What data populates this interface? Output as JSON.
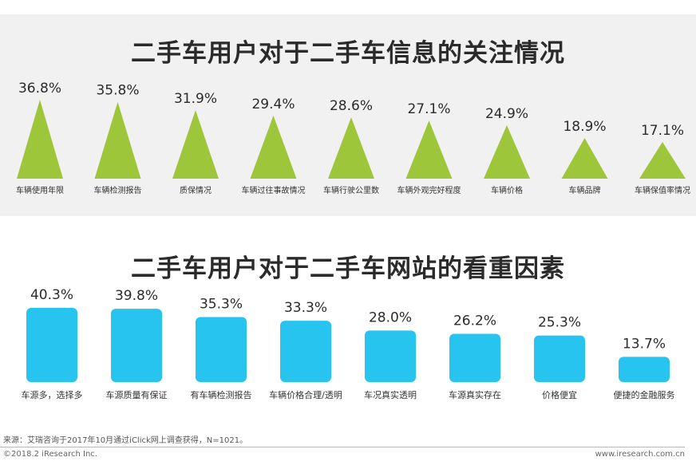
{
  "chart_data": [
    {
      "type": "bar",
      "shape": "triangle",
      "title": "二手车用户对于二手车信息的关注情况",
      "categories": [
        "车辆使用年限",
        "车辆检测报告",
        "质保情况",
        "车辆过往事故情况",
        "车辆行驶公里数",
        "车辆外观完好程度",
        "车辆价格",
        "车辆品牌",
        "车辆保值率情况"
      ],
      "values": [
        36.8,
        35.8,
        31.9,
        29.4,
        28.6,
        27.1,
        24.9,
        18.9,
        17.1
      ],
      "labels": [
        "36.8%",
        "35.8%",
        "31.9%",
        "29.4%",
        "28.6%",
        "27.1%",
        "24.9%",
        "18.9%",
        "17.1%"
      ],
      "unit": "%",
      "color": "#9dc63a",
      "xlabel": "",
      "ylabel": "",
      "ylim": [
        0,
        40
      ]
    },
    {
      "type": "bar",
      "title": "二手车用户对于二手车网站的看重因素",
      "categories": [
        "车源多，选择多",
        "车源质量有保证",
        "有车辆检测报告",
        "车辆价格合理/透明",
        "车况真实透明",
        "车源真实存在",
        "价格便宜",
        "便捷的金融服务"
      ],
      "values": [
        40.3,
        39.8,
        35.3,
        33.3,
        28.0,
        26.2,
        25.3,
        13.7
      ],
      "labels": [
        "40.3%",
        "39.8%",
        "35.3%",
        "33.3%",
        "28.0%",
        "26.2%",
        "25.3%",
        "13.7%"
      ],
      "unit": "%",
      "color": "#27c4f0",
      "xlabel": "",
      "ylabel": "",
      "ylim": [
        0,
        45
      ]
    }
  ],
  "footer": {
    "source": "来源：艾瑞咨询于2017年10月通过iClick网上调查获得，N=1021。",
    "copyright": "©2018.2 iResearch Inc.",
    "website": "www.iresearch.com.cn"
  },
  "colors": {
    "panel_bg": "#f1f1f1",
    "triangle": "#9dc63a",
    "bar": "#27c4f0"
  }
}
